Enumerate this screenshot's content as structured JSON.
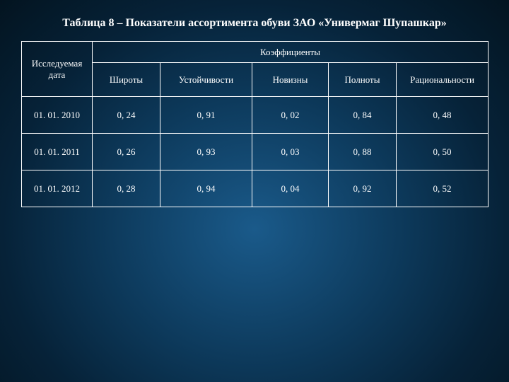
{
  "title": "Таблица 8 – Показатели ассортимента обуви ЗАО «Универмаг Шупашкар»",
  "table": {
    "corner_label": "Исследуемая дата",
    "group_label": "Коэффициенты",
    "columns": [
      "Широты",
      "Устойчивости",
      "Новизны",
      "Полноты",
      "Рациональности"
    ],
    "rows": [
      {
        "date": "01. 01. 2010",
        "values": [
          "0, 24",
          "0, 91",
          "0, 02",
          "0, 84",
          "0, 48"
        ]
      },
      {
        "date": "01. 01. 2011",
        "values": [
          "0, 26",
          "0, 93",
          "0, 03",
          "0, 88",
          "0, 50"
        ]
      },
      {
        "date": "01. 01. 2012",
        "values": [
          "0, 28",
          "0, 94",
          "0, 04",
          "0, 92",
          "0, 52"
        ]
      }
    ]
  }
}
